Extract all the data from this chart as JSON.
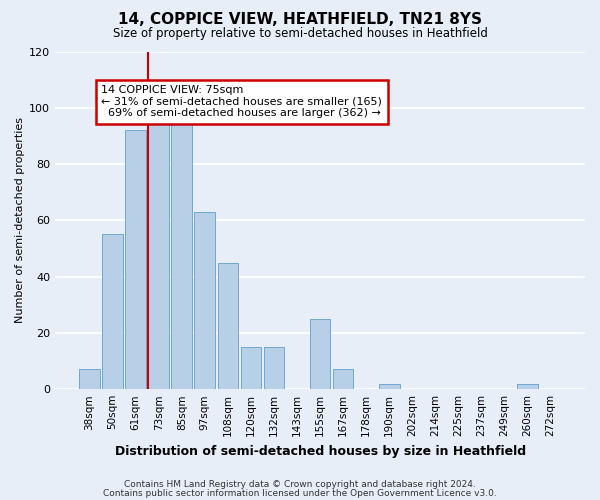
{
  "title": "14, COPPICE VIEW, HEATHFIELD, TN21 8YS",
  "subtitle": "Size of property relative to semi-detached houses in Heathfield",
  "xlabel": "Distribution of semi-detached houses by size in Heathfield",
  "ylabel": "Number of semi-detached properties",
  "bar_labels": [
    "38sqm",
    "50sqm",
    "61sqm",
    "73sqm",
    "85sqm",
    "97sqm",
    "108sqm",
    "120sqm",
    "132sqm",
    "143sqm",
    "155sqm",
    "167sqm",
    "178sqm",
    "190sqm",
    "202sqm",
    "214sqm",
    "225sqm",
    "237sqm",
    "249sqm",
    "260sqm",
    "272sqm"
  ],
  "bar_values": [
    7,
    55,
    92,
    96,
    98,
    63,
    45,
    15,
    15,
    0,
    25,
    7,
    0,
    2,
    0,
    0,
    0,
    0,
    0,
    2,
    0
  ],
  "bar_color": "#b8cfe8",
  "bar_edge_color": "#6fa8d4",
  "property_label": "14 COPPICE VIEW: 75sqm",
  "pct_smaller": 31,
  "n_smaller": 165,
  "pct_larger": 69,
  "n_larger": 362,
  "vline_color": "#cc0000",
  "annotation_box_color": "#cc0000",
  "ylim": [
    0,
    120
  ],
  "yticks": [
    0,
    20,
    40,
    60,
    80,
    100,
    120
  ],
  "footnote1": "Contains HM Land Registry data © Crown copyright and database right 2024.",
  "footnote2": "Contains public sector information licensed under the Open Government Licence v3.0.",
  "background_color": "#e8eef8",
  "grid_color": "#ffffff",
  "vline_bar_index": 3
}
